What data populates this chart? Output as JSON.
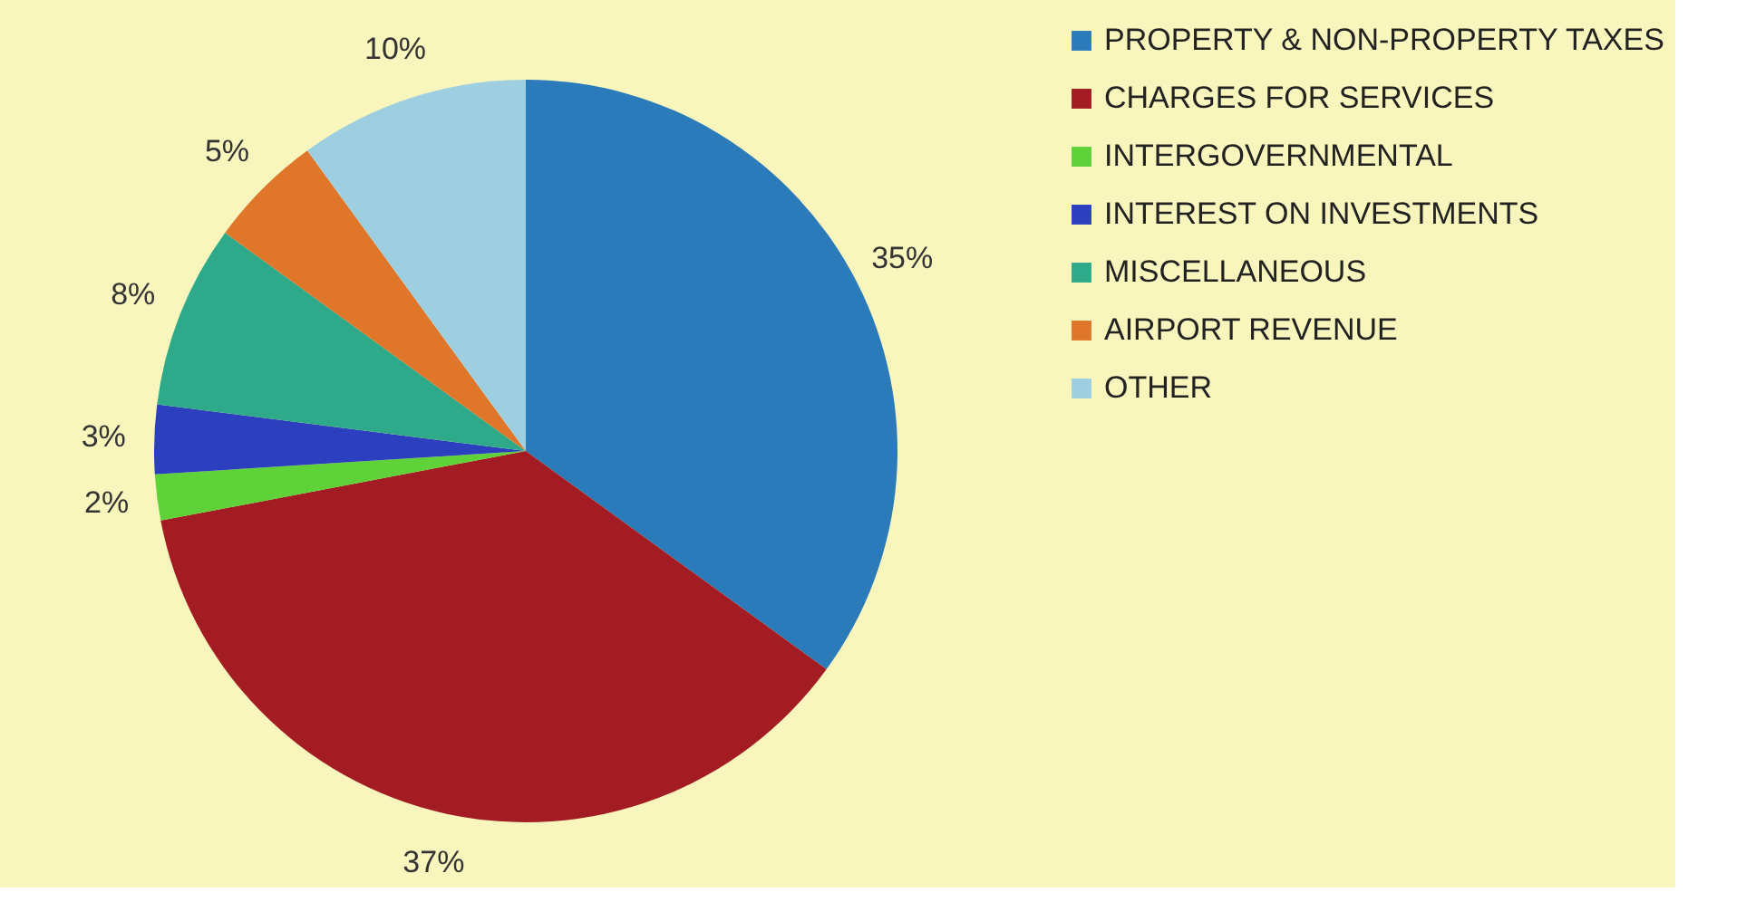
{
  "chart_data": {
    "type": "pie",
    "categories": [
      "PROPERTY & NON-PROPERTY TAXES",
      "CHARGES FOR SERVICES",
      "INTERGOVERNMENTAL",
      "INTEREST ON INVESTMENTS",
      "MISCELLANEOUS",
      "AIRPORT REVENUE",
      "OTHER"
    ],
    "values": [
      35,
      37,
      2,
      3,
      8,
      5,
      10
    ],
    "colors": [
      "#2b7bba",
      "#a31c24",
      "#5fd23a",
      "#2b3fbf",
      "#2eaa8a",
      "#e0762a",
      "#9ecfe0"
    ],
    "value_labels": [
      "35%",
      "37%",
      "2%",
      "3%",
      "8%",
      "5%",
      "10%"
    ],
    "legend": "right"
  }
}
